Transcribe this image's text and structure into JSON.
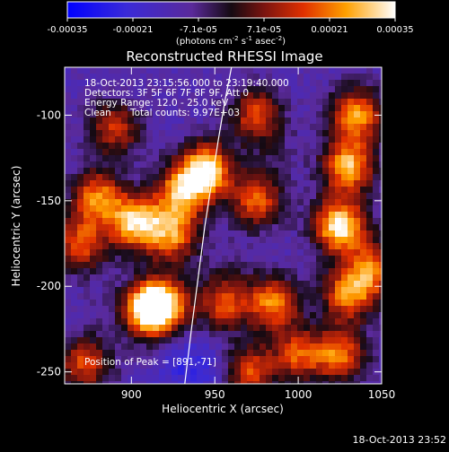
{
  "chart_data": {
    "type": "heatmap",
    "title": "Reconstructed RHESSI Image",
    "xlabel": "Heliocentric X (arcsec)",
    "ylabel": "Heliocentric Y (arcsec)",
    "xlim": [
      860,
      1050
    ],
    "ylim": [
      -257,
      -72
    ],
    "xticks": [
      900,
      950,
      1000,
      1050
    ],
    "yticks": [
      -100,
      -150,
      -200,
      -250
    ],
    "colorbar": {
      "ticks": [
        "-0.00035",
        "-0.00021",
        "-7.1e-05",
        "7.1e-05",
        "0.00021",
        "0.00035"
      ],
      "unit_prefix": "(photons cm",
      "unit_exp1": "-2",
      "unit_mid": " s",
      "unit_exp2": "-1",
      "unit_mid2": " asec",
      "unit_exp3": "-2",
      "unit_suffix": ")",
      "range": [
        -0.00035,
        0.00035
      ]
    },
    "annotations": {
      "time_range": "18-Oct-2013 23:15:56.000 to 23:19:40.000",
      "detectors": "Detectors: 3F 5F 6F 7F 8F 9F, Att 0",
      "energy": "Energy Range: 12.0 - 25.0 keV",
      "method": "Clean",
      "counts": "Total counts: 9.97E+03",
      "peak": "Position of Peak = [891,-71]"
    },
    "limb_curve": {
      "x": [
        932.0,
        936.0,
        940.0,
        944.0,
        948.0,
        952.0,
        956.0,
        960.0
      ],
      "y": [
        -257,
        -225,
        -195,
        -165,
        -140,
        -115,
        -92,
        -72
      ]
    },
    "bright_regions": [
      {
        "x": 1030,
        "y": -130,
        "level": 0.00028
      },
      {
        "x": 1025,
        "y": -165,
        "level": 0.00035
      },
      {
        "x": 1035,
        "y": -100,
        "level": 0.00024
      },
      {
        "x": 1030,
        "y": -205,
        "level": 0.00022
      },
      {
        "x": 1025,
        "y": -240,
        "level": 0.0002
      },
      {
        "x": 945,
        "y": -132,
        "level": 0.00032
      },
      {
        "x": 930,
        "y": -145,
        "level": 0.00024
      },
      {
        "x": 903,
        "y": -163,
        "level": 0.0003
      },
      {
        "x": 880,
        "y": -148,
        "level": 0.00022
      },
      {
        "x": 870,
        "y": -175,
        "level": 0.00018
      },
      {
        "x": 925,
        "y": -170,
        "level": 0.0002
      },
      {
        "x": 955,
        "y": -210,
        "level": 0.00016
      },
      {
        "x": 910,
        "y": -215,
        "level": 0.00026
      },
      {
        "x": 918,
        "y": -210,
        "level": 0.00028
      },
      {
        "x": 985,
        "y": -210,
        "level": 0.00022
      },
      {
        "x": 970,
        "y": -250,
        "level": 0.00018
      },
      {
        "x": 1000,
        "y": -240,
        "level": 0.00016
      },
      {
        "x": 975,
        "y": -150,
        "level": 0.00018
      },
      {
        "x": 975,
        "y": -100,
        "level": 0.00016
      },
      {
        "x": 890,
        "y": -108,
        "level": 0.00014
      },
      {
        "x": 872,
        "y": -245,
        "level": 0.00016
      },
      {
        "x": 1045,
        "y": -190,
        "level": 0.00018
      }
    ],
    "dark_regions": [
      {
        "x": 930,
        "y": -245,
        "level": -0.00022
      },
      {
        "x": 952,
        "y": -250,
        "level": -0.0002
      },
      {
        "x": 1010,
        "y": -235,
        "level": -0.00012
      },
      {
        "x": 880,
        "y": -210,
        "level": -0.0001
      },
      {
        "x": 960,
        "y": -190,
        "level": -8e-05
      },
      {
        "x": 985,
        "y": -125,
        "level": -6e-05
      }
    ]
  },
  "timestamp": "18-Oct-2013 23:52"
}
